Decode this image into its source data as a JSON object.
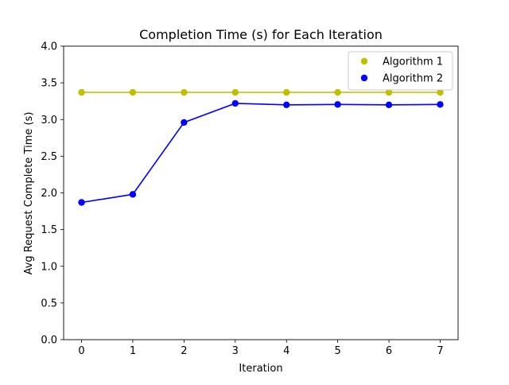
{
  "chart_data": {
    "type": "line",
    "title": "Completion Time (s) for Each Iteration",
    "xlabel": "Iteration",
    "ylabel": "Avg Request Complete Time (s)",
    "x": [
      0,
      1,
      2,
      3,
      4,
      5,
      6,
      7
    ],
    "xlim": [
      -0.35,
      7.35
    ],
    "ylim": [
      0.0,
      4.0
    ],
    "xticks": [
      "0",
      "1",
      "2",
      "3",
      "4",
      "5",
      "6",
      "7"
    ],
    "yticks": [
      "0.0",
      "0.5",
      "1.0",
      "1.5",
      "2.0",
      "2.5",
      "3.0",
      "3.5",
      "4.0"
    ],
    "grid": false,
    "legend_position": "top-right",
    "series": [
      {
        "name": "Algorithm 1",
        "color": "#bfbf00",
        "values": [
          3.37,
          3.37,
          3.37,
          3.37,
          3.37,
          3.37,
          3.37,
          3.37
        ]
      },
      {
        "name": "Algorithm 2",
        "color": "#0000ff",
        "values": [
          1.87,
          1.98,
          2.96,
          3.22,
          3.2,
          3.205,
          3.2,
          3.205
        ]
      }
    ]
  }
}
